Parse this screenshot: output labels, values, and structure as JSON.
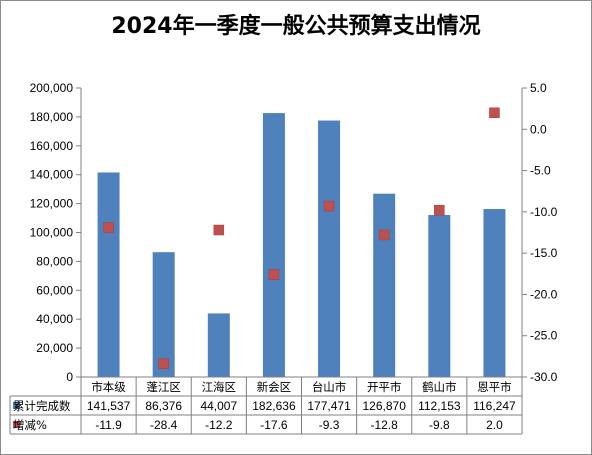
{
  "title": "2024年一季度一般公共预算支出情况",
  "chart_data": {
    "type": "bar",
    "title": "2024年一季度一般公共预算支出情况",
    "categories": [
      "市本级",
      "蓬江区",
      "江海区",
      "新会区",
      "台山市",
      "开平市",
      "鹤山市",
      "恩平市"
    ],
    "series": [
      {
        "name": "累计完成数",
        "type": "bar",
        "axis": "left",
        "values": [
          141537,
          86376,
          44007,
          182636,
          177471,
          126870,
          112153,
          116247
        ],
        "labels": [
          "141,537",
          "86,376",
          "44,007",
          "182,636",
          "177,471",
          "126,870",
          "112,153",
          "116,247"
        ],
        "color": "#4f81bd"
      },
      {
        "name": "增减%",
        "type": "scatter",
        "axis": "right",
        "values": [
          -11.9,
          -28.4,
          -12.2,
          -17.6,
          -9.3,
          -12.8,
          -9.8,
          2.0
        ],
        "labels": [
          "-11.9",
          "-28.4",
          "-12.2",
          "-17.6",
          "-9.3",
          "-12.8",
          "-9.8",
          "2.0"
        ],
        "color": "#c0504d"
      }
    ],
    "left_axis": {
      "min": 0,
      "max": 200000,
      "step": 20000,
      "tick_labels": [
        "0",
        "20,000",
        "40,000",
        "60,000",
        "80,000",
        "100,000",
        "120,000",
        "140,000",
        "160,000",
        "180,000",
        "200,000"
      ]
    },
    "right_axis": {
      "min": -30,
      "max": 5,
      "step": 5,
      "tick_labels": [
        "-30.0",
        "-25.0",
        "-20.0",
        "-15.0",
        "-10.0",
        "-5.0",
        "0.0",
        "5.0"
      ]
    },
    "grid": false,
    "data_table": true
  }
}
